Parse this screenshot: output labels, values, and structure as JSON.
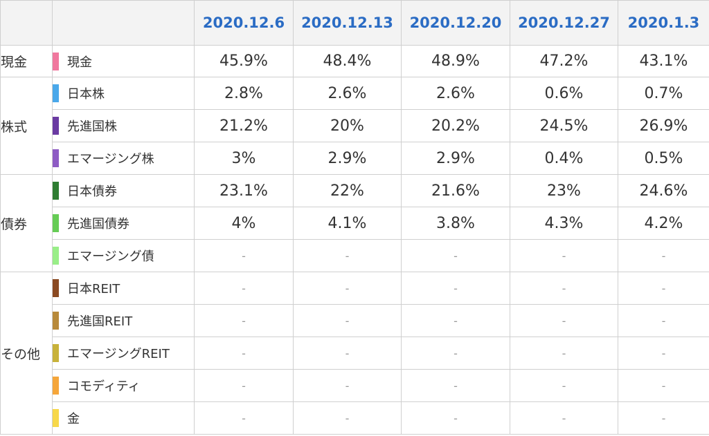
{
  "dates": [
    "2020.12.6",
    "2020.12.13",
    "2020.12.20",
    "2020.12.27",
    "2020.1.3"
  ],
  "groups": [
    {
      "name": "現金",
      "rows": [
        {
          "label": "現金",
          "color": "#f0789e",
          "values": [
            "45.9%",
            "48.4%",
            "48.9%",
            "47.2%",
            "43.1%"
          ]
        }
      ]
    },
    {
      "name": "株式",
      "rows": [
        {
          "label": "日本株",
          "color": "#4aa8ea",
          "values": [
            "2.8%",
            "2.6%",
            "2.6%",
            "0.6%",
            "0.7%"
          ]
        },
        {
          "label": "先進国株",
          "color": "#6a3aa2",
          "values": [
            "21.2%",
            "20%",
            "20.2%",
            "24.5%",
            "26.9%"
          ]
        },
        {
          "label": "エマージング株",
          "color": "#8e5cc4",
          "values": [
            "3%",
            "2.9%",
            "2.9%",
            "0.4%",
            "0.5%"
          ]
        }
      ]
    },
    {
      "name": "債券",
      "rows": [
        {
          "label": "日本債券",
          "color": "#2e7d32",
          "values": [
            "23.1%",
            "22%",
            "21.6%",
            "23%",
            "24.6%"
          ]
        },
        {
          "label": "先進国債券",
          "color": "#66cc55",
          "values": [
            "4%",
            "4.1%",
            "3.8%",
            "4.3%",
            "4.2%"
          ]
        },
        {
          "label": "エマージング債",
          "color": "#99ee88",
          "values": [
            "-",
            "-",
            "-",
            "-",
            "-"
          ]
        }
      ]
    },
    {
      "name": "その他",
      "rows": [
        {
          "label": "日本REIT",
          "color": "#8b4a22",
          "values": [
            "-",
            "-",
            "-",
            "-",
            "-"
          ]
        },
        {
          "label": "先進国REIT",
          "color": "#b88a3a",
          "values": [
            "-",
            "-",
            "-",
            "-",
            "-"
          ]
        },
        {
          "label": "エマージングREIT",
          "color": "#c8b23a",
          "values": [
            "-",
            "-",
            "-",
            "-",
            "-"
          ]
        },
        {
          "label": "コモディティ",
          "color": "#f5a63a",
          "values": [
            "-",
            "-",
            "-",
            "-",
            "-"
          ]
        },
        {
          "label": "金",
          "color": "#f7d84a",
          "values": [
            "-",
            "-",
            "-",
            "-",
            "-"
          ]
        }
      ]
    }
  ]
}
